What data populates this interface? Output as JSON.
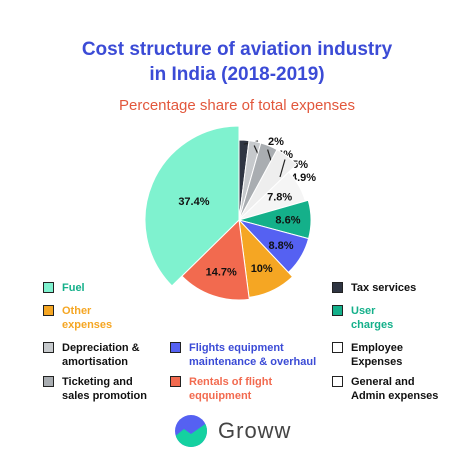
{
  "chart_data": {
    "type": "pie",
    "title_line1": "Cost structure of aviation industry",
    "title_line2": "in India (2018-2019)",
    "subtitle": "Percentage share of total expenses",
    "slices": [
      {
        "name": "Tax services",
        "value": 2,
        "label": "2%",
        "color": "#2f3542",
        "label_style": "outside"
      },
      {
        "name": "Depreciation & amortisation",
        "value": 2.4,
        "label": "2.4%",
        "color": "#c6c9cc",
        "label_style": "outside"
      },
      {
        "name": "Ticketing and sales promotion",
        "value": 3.5,
        "label": "3.5%",
        "color": "#a9adb1",
        "label_style": "outside"
      },
      {
        "name": "Employee Expenses",
        "value": 4.9,
        "label": "4.9%",
        "color": "#eeeeee",
        "label_style": "outside"
      },
      {
        "name": "General and Admin expenses",
        "value": 7.8,
        "label": "7.8%",
        "color": "#f5f5f5",
        "label_style": "inside"
      },
      {
        "name": "User charges",
        "value": 8.6,
        "label": "8.6%",
        "color": "#14b08a",
        "label_style": "inside"
      },
      {
        "name": "Flights equipment maintenance & overhaul",
        "value": 8.8,
        "label": "8.8%",
        "color": "#5561f2",
        "label_style": "inside"
      },
      {
        "name": "Other expenses",
        "value": 10,
        "label": "10%",
        "color": "#f5a623",
        "label_style": "inside"
      },
      {
        "name": "Rentals of flight equipment",
        "value": 14.7,
        "label": "14.7%",
        "color": "#f26a4f",
        "label_style": "inside"
      },
      {
        "name": "Fuel",
        "value": 37.4,
        "label": "37.4%",
        "color": "#7ff2cf",
        "label_style": "inside"
      }
    ]
  },
  "legend": [
    {
      "label_lines": [
        "Fuel"
      ],
      "color": "#7ff2cf",
      "text_color": "#14b08a"
    },
    {
      "label_lines": [
        "Tax services"
      ],
      "color": "#2f3542",
      "text_color": "#111111"
    },
    {
      "label_lines": [
        "Other",
        "expenses"
      ],
      "color": "#f5a623",
      "text_color": "#f5a623"
    },
    {
      "label_lines": [
        "User",
        "charges"
      ],
      "color": "#14b08a",
      "text_color": "#14b08a"
    },
    {
      "label_lines": [
        "Depreciation &",
        "amortisation"
      ],
      "color": "#c6c9cc",
      "text_color": "#111111"
    },
    {
      "label_lines": [
        "Flights equipment",
        "maintenance & overhaul"
      ],
      "color": "#5561f2",
      "text_color": "#3b4bd6"
    },
    {
      "label_lines": [
        "Employee",
        "Expenses"
      ],
      "color": "#ffffff",
      "text_color": "#111111"
    },
    {
      "label_lines": [
        "Ticketing and",
        "sales promotion"
      ],
      "color": "#a9adb1",
      "text_color": "#111111"
    },
    {
      "label_lines": [
        "Rentals of flight",
        "eqquipment"
      ],
      "color": "#f26a4f",
      "text_color": "#f26a4f"
    },
    {
      "label_lines": [
        "General and",
        "Admin expenses"
      ],
      "color": "#ffffff",
      "text_color": "#111111"
    }
  ],
  "footer": {
    "brand": "Groww",
    "logo": "groww-logo"
  }
}
